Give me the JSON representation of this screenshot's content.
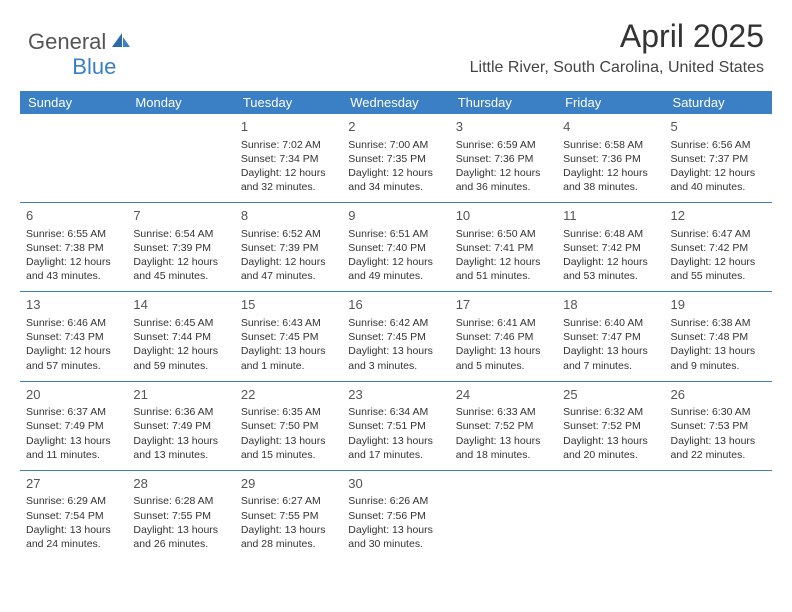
{
  "logo": {
    "text1": "General",
    "text2": "Blue",
    "icon_color": "#3b7fc4"
  },
  "title": "April 2025",
  "location": "Little River, South Carolina, United States",
  "colors": {
    "header_bg": "#3b7fc4",
    "header_text": "#ffffff",
    "divider": "#3b7fc4",
    "body_text": "#333333",
    "daynum_text": "#555555",
    "background": "#ffffff"
  },
  "typography": {
    "title_fontsize": 32,
    "location_fontsize": 16,
    "dayheader_fontsize": 13,
    "cell_fontsize": 10.5,
    "daynum_fontsize": 13
  },
  "day_headers": [
    "Sunday",
    "Monday",
    "Tuesday",
    "Wednesday",
    "Thursday",
    "Friday",
    "Saturday"
  ],
  "weeks": [
    [
      null,
      null,
      {
        "n": "1",
        "sr": "Sunrise: 7:02 AM",
        "ss": "Sunset: 7:34 PM",
        "dl": "Daylight: 12 hours and 32 minutes."
      },
      {
        "n": "2",
        "sr": "Sunrise: 7:00 AM",
        "ss": "Sunset: 7:35 PM",
        "dl": "Daylight: 12 hours and 34 minutes."
      },
      {
        "n": "3",
        "sr": "Sunrise: 6:59 AM",
        "ss": "Sunset: 7:36 PM",
        "dl": "Daylight: 12 hours and 36 minutes."
      },
      {
        "n": "4",
        "sr": "Sunrise: 6:58 AM",
        "ss": "Sunset: 7:36 PM",
        "dl": "Daylight: 12 hours and 38 minutes."
      },
      {
        "n": "5",
        "sr": "Sunrise: 6:56 AM",
        "ss": "Sunset: 7:37 PM",
        "dl": "Daylight: 12 hours and 40 minutes."
      }
    ],
    [
      {
        "n": "6",
        "sr": "Sunrise: 6:55 AM",
        "ss": "Sunset: 7:38 PM",
        "dl": "Daylight: 12 hours and 43 minutes."
      },
      {
        "n": "7",
        "sr": "Sunrise: 6:54 AM",
        "ss": "Sunset: 7:39 PM",
        "dl": "Daylight: 12 hours and 45 minutes."
      },
      {
        "n": "8",
        "sr": "Sunrise: 6:52 AM",
        "ss": "Sunset: 7:39 PM",
        "dl": "Daylight: 12 hours and 47 minutes."
      },
      {
        "n": "9",
        "sr": "Sunrise: 6:51 AM",
        "ss": "Sunset: 7:40 PM",
        "dl": "Daylight: 12 hours and 49 minutes."
      },
      {
        "n": "10",
        "sr": "Sunrise: 6:50 AM",
        "ss": "Sunset: 7:41 PM",
        "dl": "Daylight: 12 hours and 51 minutes."
      },
      {
        "n": "11",
        "sr": "Sunrise: 6:48 AM",
        "ss": "Sunset: 7:42 PM",
        "dl": "Daylight: 12 hours and 53 minutes."
      },
      {
        "n": "12",
        "sr": "Sunrise: 6:47 AM",
        "ss": "Sunset: 7:42 PM",
        "dl": "Daylight: 12 hours and 55 minutes."
      }
    ],
    [
      {
        "n": "13",
        "sr": "Sunrise: 6:46 AM",
        "ss": "Sunset: 7:43 PM",
        "dl": "Daylight: 12 hours and 57 minutes."
      },
      {
        "n": "14",
        "sr": "Sunrise: 6:45 AM",
        "ss": "Sunset: 7:44 PM",
        "dl": "Daylight: 12 hours and 59 minutes."
      },
      {
        "n": "15",
        "sr": "Sunrise: 6:43 AM",
        "ss": "Sunset: 7:45 PM",
        "dl": "Daylight: 13 hours and 1 minute."
      },
      {
        "n": "16",
        "sr": "Sunrise: 6:42 AM",
        "ss": "Sunset: 7:45 PM",
        "dl": "Daylight: 13 hours and 3 minutes."
      },
      {
        "n": "17",
        "sr": "Sunrise: 6:41 AM",
        "ss": "Sunset: 7:46 PM",
        "dl": "Daylight: 13 hours and 5 minutes."
      },
      {
        "n": "18",
        "sr": "Sunrise: 6:40 AM",
        "ss": "Sunset: 7:47 PM",
        "dl": "Daylight: 13 hours and 7 minutes."
      },
      {
        "n": "19",
        "sr": "Sunrise: 6:38 AM",
        "ss": "Sunset: 7:48 PM",
        "dl": "Daylight: 13 hours and 9 minutes."
      }
    ],
    [
      {
        "n": "20",
        "sr": "Sunrise: 6:37 AM",
        "ss": "Sunset: 7:49 PM",
        "dl": "Daylight: 13 hours and 11 minutes."
      },
      {
        "n": "21",
        "sr": "Sunrise: 6:36 AM",
        "ss": "Sunset: 7:49 PM",
        "dl": "Daylight: 13 hours and 13 minutes."
      },
      {
        "n": "22",
        "sr": "Sunrise: 6:35 AM",
        "ss": "Sunset: 7:50 PM",
        "dl": "Daylight: 13 hours and 15 minutes."
      },
      {
        "n": "23",
        "sr": "Sunrise: 6:34 AM",
        "ss": "Sunset: 7:51 PM",
        "dl": "Daylight: 13 hours and 17 minutes."
      },
      {
        "n": "24",
        "sr": "Sunrise: 6:33 AM",
        "ss": "Sunset: 7:52 PM",
        "dl": "Daylight: 13 hours and 18 minutes."
      },
      {
        "n": "25",
        "sr": "Sunrise: 6:32 AM",
        "ss": "Sunset: 7:52 PM",
        "dl": "Daylight: 13 hours and 20 minutes."
      },
      {
        "n": "26",
        "sr": "Sunrise: 6:30 AM",
        "ss": "Sunset: 7:53 PM",
        "dl": "Daylight: 13 hours and 22 minutes."
      }
    ],
    [
      {
        "n": "27",
        "sr": "Sunrise: 6:29 AM",
        "ss": "Sunset: 7:54 PM",
        "dl": "Daylight: 13 hours and 24 minutes."
      },
      {
        "n": "28",
        "sr": "Sunrise: 6:28 AM",
        "ss": "Sunset: 7:55 PM",
        "dl": "Daylight: 13 hours and 26 minutes."
      },
      {
        "n": "29",
        "sr": "Sunrise: 6:27 AM",
        "ss": "Sunset: 7:55 PM",
        "dl": "Daylight: 13 hours and 28 minutes."
      },
      {
        "n": "30",
        "sr": "Sunrise: 6:26 AM",
        "ss": "Sunset: 7:56 PM",
        "dl": "Daylight: 13 hours and 30 minutes."
      },
      null,
      null,
      null
    ]
  ]
}
